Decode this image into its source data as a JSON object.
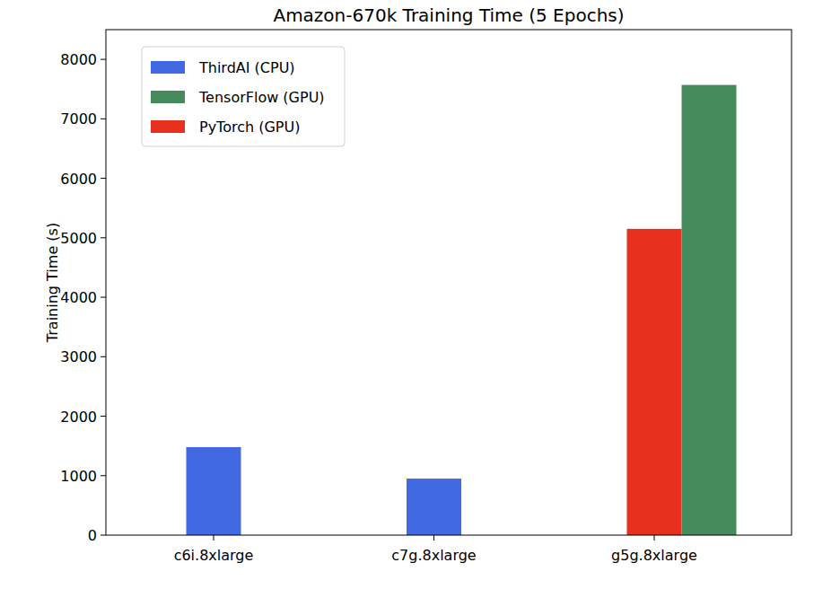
{
  "chart_data": {
    "type": "bar",
    "title": "Amazon-670k Training Time (5 Epochs)",
    "y_label": "Training Time (s)",
    "categories": [
      "c6i.8xlarge",
      "c7g.8xlarge",
      "g5g.8xlarge"
    ],
    "series": [
      {
        "name": "ThirdAI (CPU)",
        "color": "#4169e1",
        "values": [
          1480,
          950,
          null
        ]
      },
      {
        "name": "TensorFlow (GPU)",
        "color": "#458b5c",
        "values": [
          null,
          null,
          7570
        ]
      },
      {
        "name": "PyTorch (GPU)",
        "color": "#e8301e",
        "values": [
          null,
          null,
          5150
        ]
      }
    ],
    "ylim": [
      0,
      8500
    ],
    "yticks": [
      0,
      1000,
      2000,
      3000,
      4000,
      5000,
      6000,
      7000,
      8000
    ],
    "grid": false,
    "legend": "upper left"
  }
}
